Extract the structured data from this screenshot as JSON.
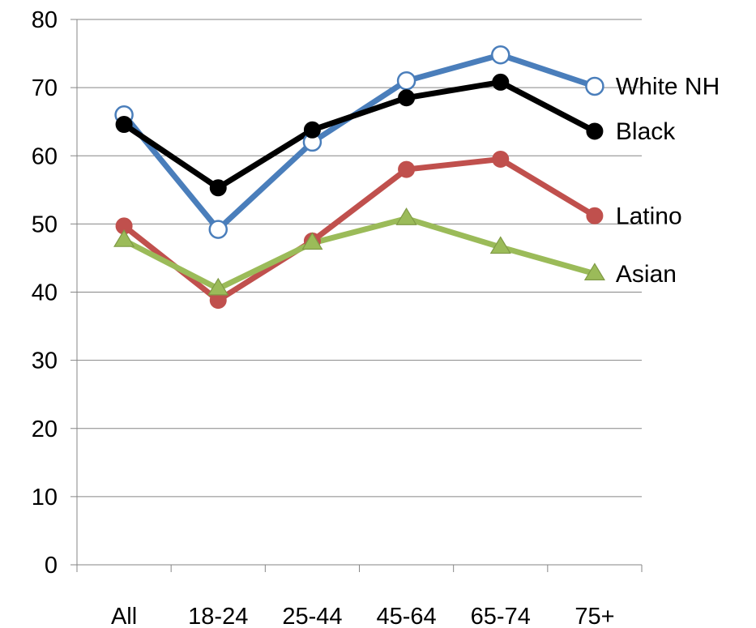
{
  "chart_data": {
    "type": "line",
    "categories": [
      "All",
      "18-24",
      "25-44",
      "45-64",
      "65-74",
      "75+"
    ],
    "ylim": [
      0,
      80
    ],
    "yticks": [
      0,
      10,
      20,
      30,
      40,
      50,
      60,
      70,
      80
    ],
    "ylabel": "",
    "grid": true,
    "legend": "inline-right",
    "series": [
      {
        "name": "White NH",
        "color": "#4a7ebb",
        "marker": "circle-open",
        "values": [
          66,
          49.2,
          62,
          71,
          74.8,
          70.2
        ]
      },
      {
        "name": "Black",
        "color": "#000000",
        "marker": "circle-filled",
        "values": [
          64.6,
          55.3,
          63.8,
          68.5,
          70.8,
          63.6
        ]
      },
      {
        "name": "Latino",
        "color": "#c0504d",
        "marker": "circle-filled",
        "values": [
          49.7,
          38.8,
          47.5,
          58,
          59.5,
          51.2
        ]
      },
      {
        "name": "Asian",
        "color": "#9bbb59",
        "marker": "triangle",
        "values": [
          47.6,
          40.5,
          47.2,
          50.8,
          46.6,
          42.7
        ]
      }
    ]
  }
}
